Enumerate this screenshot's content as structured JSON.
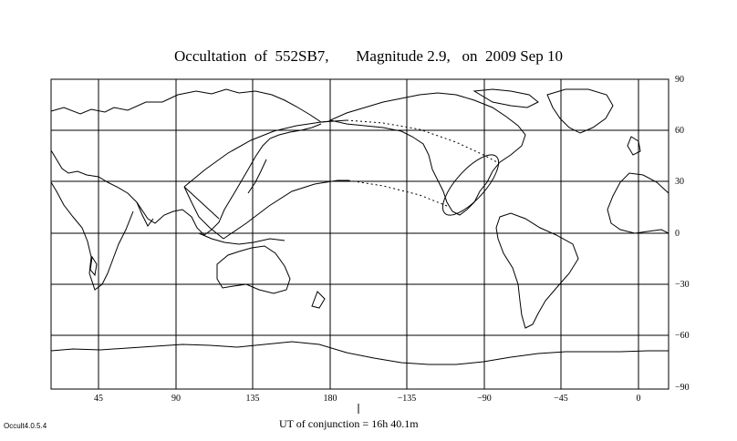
{
  "title": "Occultation  of  552SB7,       Magnitude 2.9,   on  2009 Sep 10",
  "conjunction_label": "UT of conjunction = 16h 40.1m",
  "version": "Occult4.0.5.4",
  "x_ticks": [
    "45",
    "90",
    "135",
    "180",
    "−135",
    "−90",
    "−45",
    "0"
  ],
  "y_ticks": [
    "90",
    "60",
    "30",
    "0",
    "−30",
    "−60",
    "−90"
  ],
  "colors": {
    "line": "#000000",
    "background": "#ffffff"
  }
}
